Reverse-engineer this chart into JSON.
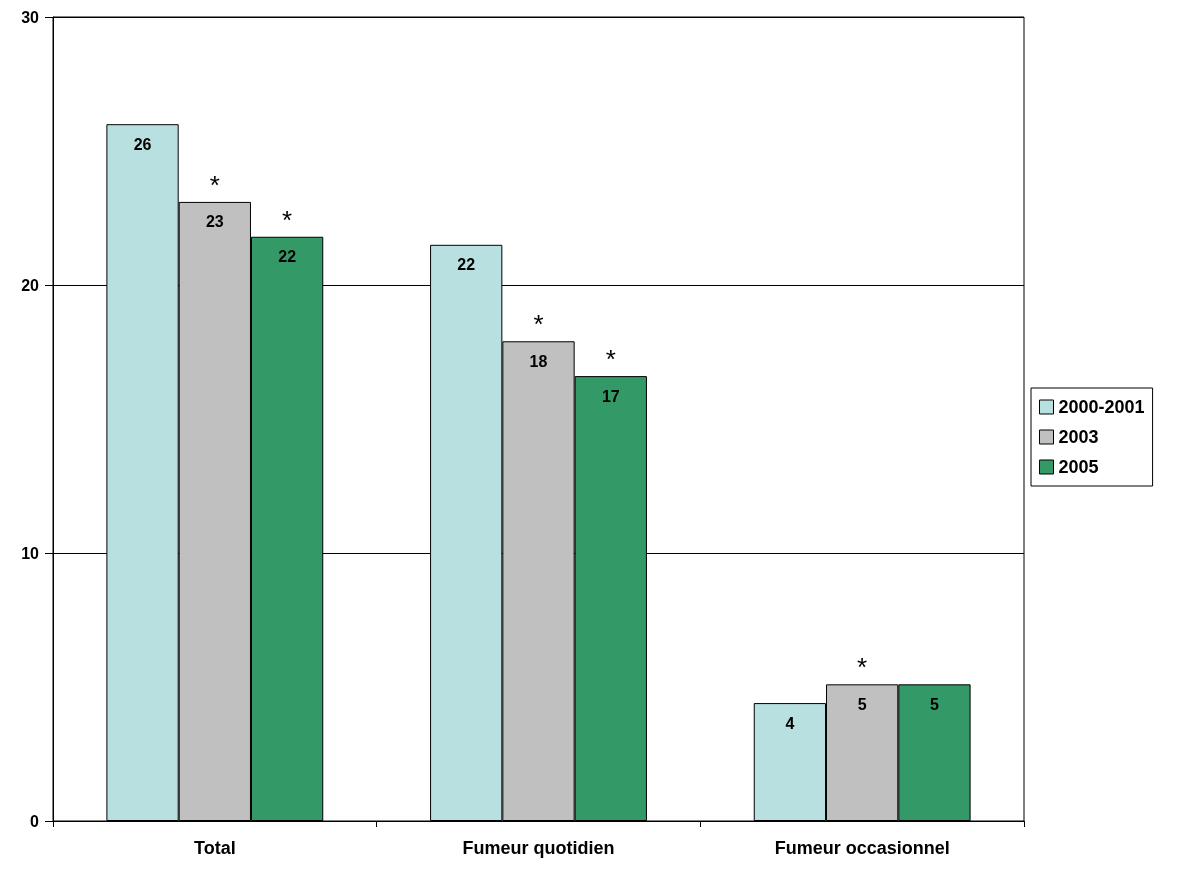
{
  "chart_data": {
    "type": "bar",
    "categories": [
      "Total",
      "Fumeur quotidien",
      "Fumeur occasionnel"
    ],
    "series": [
      {
        "name": "2000-2001",
        "color": "#b9e0e1",
        "values": [
          26.0,
          21.5,
          4.4
        ],
        "value_labels": [
          "26",
          "22",
          "4"
        ]
      },
      {
        "name": "2003",
        "color": "#c0c0c0",
        "values": [
          23.1,
          17.9,
          5.1
        ],
        "value_labels": [
          "23",
          "18",
          "5"
        ]
      },
      {
        "name": "2005",
        "color": "#339966",
        "values": [
          21.8,
          16.6,
          5.1
        ],
        "value_labels": [
          "22",
          "17",
          "5"
        ]
      }
    ],
    "annotations": [
      {
        "text": "*",
        "x": "Total",
        "y": 23.1
      },
      "*",
      {
        "text": "*",
        "x": "Fumeur quotidien",
        "y": 17.9
      },
      "*",
      {
        "text": "*",
        "x": "Fumeur occasionnel",
        "y": 5.1
      }
    ],
    "ylim": [
      0,
      30
    ],
    "yticks": [
      0,
      10,
      20,
      30
    ],
    "grid": "y",
    "legend": "right"
  }
}
